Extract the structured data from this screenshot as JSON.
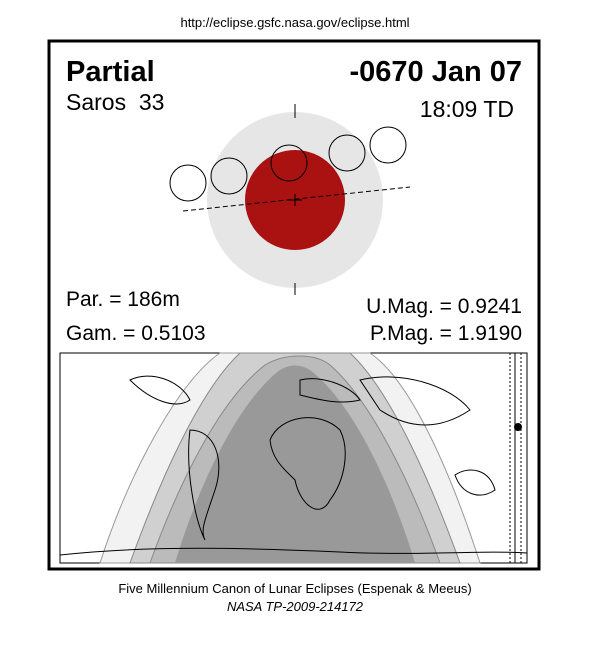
{
  "header": {
    "url": "http://eclipse.gsfc.nasa.gov/eclipse.html"
  },
  "eclipse": {
    "type": "Partial",
    "date": "-0670 Jan 07",
    "saros": "Saros  33",
    "time": "18:09 TD",
    "duration": "Par. = 186m",
    "gamma": "Gam. = 0.5103",
    "umag": "U.Mag. = 0.9241",
    "pmag": "P.Mag. = 1.9190"
  },
  "footer": {
    "title": "Five Millennium Canon of Lunar Eclipses (Espenak & Meeus)",
    "reference": "NASA TP-2009-214172"
  }
}
